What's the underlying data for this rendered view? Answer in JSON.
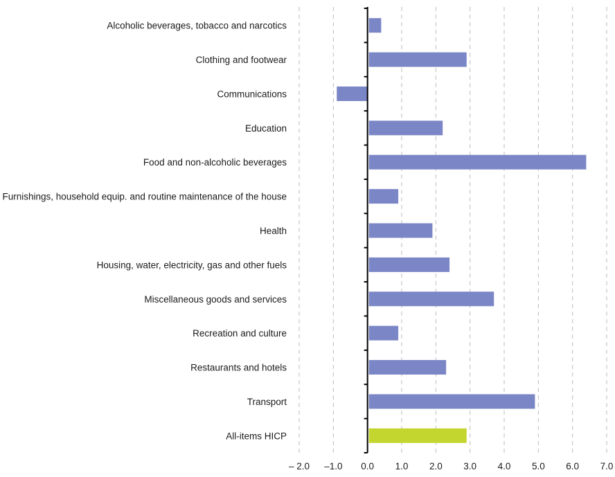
{
  "chart_data": {
    "type": "bar",
    "orientation": "horizontal",
    "title": "",
    "xlabel": "",
    "ylabel": "",
    "categories": [
      "Alcoholic beverages, tobacco and narcotics",
      "Clothing and footwear",
      "Communications",
      "Education",
      "Food and non-alcoholic beverages",
      "Furnishings, household equip. and routine maintenance of the house",
      "Health",
      "Housing, water, electricity, gas and other fuels",
      "Miscellaneous goods and services",
      "Recreation and culture",
      "Restaurants and hotels",
      "Transport",
      "All-items HICP"
    ],
    "values": [
      0.4,
      2.9,
      -0.9,
      2.2,
      6.4,
      0.9,
      1.9,
      2.4,
      3.7,
      0.9,
      2.3,
      4.9,
      2.9
    ],
    "highlight_index": 12,
    "xlim": [
      -2.0,
      7.0
    ],
    "xticks": [
      -2.0,
      -1.0,
      0.0,
      1.0,
      2.0,
      3.0,
      4.0,
      5.0,
      6.0,
      7.0
    ],
    "xtick_labels": [
      "– 2.0",
      "–1.0",
      "0.0",
      "1.0",
      "2.0",
      "3.0",
      "4.0",
      "5.0",
      "6.0",
      "7.0"
    ],
    "grid": "vertical dashed",
    "legend": "none",
    "colors": {
      "bar": "#7b86c6",
      "highlight": "#c3d62f",
      "grid": "#bdbdbd",
      "axis": "#000000"
    }
  }
}
